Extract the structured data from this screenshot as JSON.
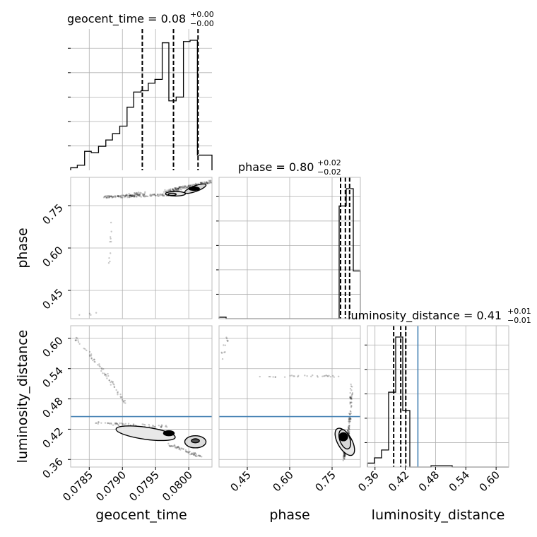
{
  "chart_data": {
    "type": "corner",
    "parameters": [
      "geocent_time",
      "phase",
      "luminosity_distance"
    ],
    "titles": [
      {
        "param": "geocent_time",
        "prefix": "geocent_time = ",
        "value": "0.08",
        "plus": "+0.00",
        "minus": "−0.00"
      },
      {
        "param": "phase",
        "prefix": "phase = ",
        "value": "0.80",
        "plus": "+0.02",
        "minus": "−0.02"
      },
      {
        "param": "luminosity_distance",
        "prefix": "luminosity_distance = ",
        "value": "0.41",
        "plus": "+0.01",
        "minus": "−0.01"
      }
    ],
    "axis_labels": {
      "x": [
        "geocent_time",
        "phase",
        "luminosity_distance"
      ],
      "y": [
        "phase",
        "luminosity_distance"
      ]
    },
    "ranges": {
      "geocent_time": [
        0.07822,
        0.08035
      ],
      "phase": [
        0.35,
        0.85
      ],
      "luminosity_distance": [
        0.345,
        0.625
      ]
    },
    "ticks": {
      "geocent_time": [
        "0.0785",
        "0.0790",
        "0.0795",
        "0.0800"
      ],
      "phase": [
        "0.45",
        "0.60",
        "0.75"
      ],
      "luminosity_distance": [
        "0.36",
        "0.42",
        "0.48",
        "0.54",
        "0.60"
      ]
    },
    "truth": {
      "luminosity_distance": 0.445
    },
    "quantiles": {
      "geocent_time": [
        0.0793,
        0.07977,
        0.08014
      ],
      "phase": [
        0.78,
        0.797,
        0.812
      ],
      "luminosity_distance": [
        0.397,
        0.411,
        0.421
      ]
    },
    "histograms": {
      "geocent_time": {
        "edges": [
          0.07822,
          0.07832,
          0.07843,
          0.07853,
          0.07864,
          0.07875,
          0.07885,
          0.07896,
          0.07907,
          0.07917,
          0.07928,
          0.07939,
          0.07949,
          0.0796,
          0.0797,
          0.07981,
          0.07992,
          0.08002,
          0.08013,
          0.08024,
          0.08035
        ],
        "counts": [
          2,
          4,
          15,
          14,
          19,
          24,
          29,
          35,
          50,
          62,
          63,
          69,
          72,
          101,
          55,
          58,
          102,
          103,
          12,
          12
        ]
      },
      "phase": {
        "edges": [
          0.35,
          0.375,
          0.4,
          0.425,
          0.45,
          0.475,
          0.5,
          0.525,
          0.55,
          0.575,
          0.6,
          0.625,
          0.65,
          0.675,
          0.7,
          0.725,
          0.75,
          0.775,
          0.8,
          0.825,
          0.85
        ],
        "counts": [
          1,
          0,
          0,
          0,
          0,
          0,
          0,
          0,
          0,
          0,
          0,
          0,
          0,
          0,
          0,
          0,
          0,
          78,
          90,
          33
        ]
      },
      "luminosity_distance": {
        "edges": [
          0.345,
          0.359,
          0.373,
          0.387,
          0.401,
          0.415,
          0.429,
          0.443,
          0.457,
          0.471,
          0.485,
          0.499,
          0.513,
          0.527,
          0.541,
          0.555,
          0.569,
          0.583,
          0.597,
          0.611,
          0.625
        ],
        "counts": [
          3,
          7,
          13,
          57,
          99,
          43,
          0,
          0,
          0,
          1,
          1,
          1,
          0,
          0,
          0,
          0,
          0,
          0,
          0,
          0
        ]
      }
    },
    "grid": true,
    "colors": {
      "truth": "#4682b4",
      "hist": "#000000",
      "contour_fill": "#8c8c8c"
    }
  }
}
